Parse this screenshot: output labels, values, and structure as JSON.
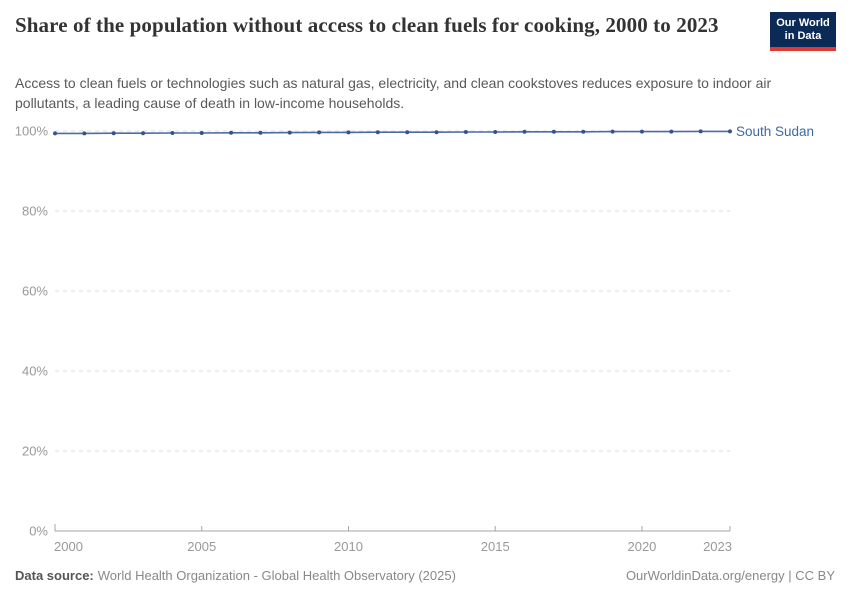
{
  "header": {
    "title": "Share of the population without access to clean fuels for cooking, 2000 to 2023",
    "subtitle": "Access to clean fuels or technologies such as natural gas, electricity, and clean cookstoves reduces exposure to indoor air pollutants, a leading cause of death in low-income households.",
    "logo": {
      "line1": "Our World",
      "line2": "in Data",
      "bg_color": "#0b2a55",
      "stripe_color": "#dc3a32"
    }
  },
  "chart_data": {
    "type": "line",
    "title": "Share of the population without access to clean fuels for cooking, 2000 to 2023",
    "xlabel": "",
    "ylabel": "",
    "xlim": [
      2000,
      2023
    ],
    "ylim": [
      0,
      100
    ],
    "grid": "horizontal-dashed",
    "legend_position": "end-of-line-label",
    "x_ticks": [
      {
        "value": 2000,
        "label": "2000"
      },
      {
        "value": 2005,
        "label": "2005"
      },
      {
        "value": 2010,
        "label": "2010"
      },
      {
        "value": 2015,
        "label": "2015"
      },
      {
        "value": 2020,
        "label": "2020"
      },
      {
        "value": 2023,
        "label": "2023"
      }
    ],
    "y_ticks": [
      {
        "value": 0,
        "label": "0%"
      },
      {
        "value": 20,
        "label": "20%"
      },
      {
        "value": 40,
        "label": "40%"
      },
      {
        "value": 60,
        "label": "60%"
      },
      {
        "value": 80,
        "label": "80%"
      },
      {
        "value": 100,
        "label": "100%"
      }
    ],
    "series": [
      {
        "name": "South Sudan",
        "color": "#4d6ba5",
        "point_color": "#36548c",
        "label_color": "#3d6aa3",
        "x": [
          2000,
          2001,
          2002,
          2003,
          2004,
          2005,
          2006,
          2007,
          2008,
          2009,
          2010,
          2011,
          2012,
          2013,
          2014,
          2015,
          2016,
          2017,
          2018,
          2019,
          2020,
          2021,
          2022,
          2023
        ],
        "values": [
          99.4,
          99.4,
          99.45,
          99.45,
          99.5,
          99.5,
          99.55,
          99.55,
          99.6,
          99.65,
          99.65,
          99.7,
          99.7,
          99.7,
          99.75,
          99.75,
          99.8,
          99.8,
          99.8,
          99.85,
          99.85,
          99.85,
          99.9,
          99.9
        ]
      }
    ],
    "style": {
      "gridline_color": "#dddddd",
      "axis_color": "#a5a5a5",
      "tick_label_color": "#999999"
    }
  },
  "footer": {
    "source_label": "Data source:",
    "source_text": "World Health Organization - Global Health Observatory (2025)",
    "rights": "OurWorldinData.org/energy | CC BY"
  }
}
